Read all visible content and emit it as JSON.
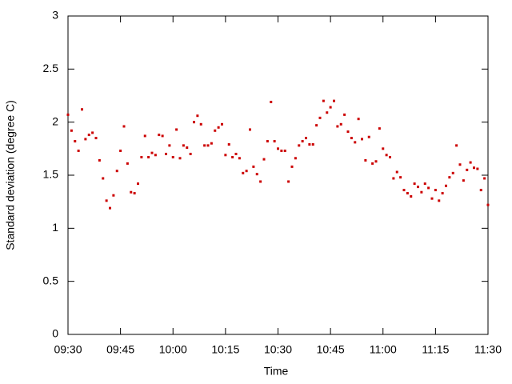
{
  "chart_data": {
    "type": "scatter",
    "xlabel": "Time",
    "ylabel": "Standard deviation (degree C)",
    "color": "#cc0000",
    "xlim": [
      "09:30",
      "11:30"
    ],
    "xticks": [
      "09:30",
      "09:45",
      "10:00",
      "10:15",
      "10:30",
      "10:45",
      "11:00",
      "11:15",
      "11:30"
    ],
    "ylim": [
      0,
      3
    ],
    "yticks": [
      0,
      0.5,
      1,
      1.5,
      2,
      2.5,
      3
    ],
    "x": [
      "09:30",
      "09:31",
      "09:32",
      "09:33",
      "09:34",
      "09:35",
      "09:36",
      "09:37",
      "09:38",
      "09:39",
      "09:40",
      "09:41",
      "09:42",
      "09:43",
      "09:44",
      "09:45",
      "09:46",
      "09:47",
      "09:48",
      "09:49",
      "09:50",
      "09:51",
      "09:52",
      "09:53",
      "09:54",
      "09:55",
      "09:56",
      "09:57",
      "09:58",
      "09:59",
      "10:00",
      "10:01",
      "10:02",
      "10:03",
      "10:04",
      "10:05",
      "10:06",
      "10:07",
      "10:08",
      "10:09",
      "10:10",
      "10:11",
      "10:12",
      "10:13",
      "10:14",
      "10:15",
      "10:16",
      "10:17",
      "10:18",
      "10:19",
      "10:20",
      "10:21",
      "10:22",
      "10:23",
      "10:24",
      "10:25",
      "10:26",
      "10:27",
      "10:28",
      "10:29",
      "10:30",
      "10:31",
      "10:32",
      "10:33",
      "10:34",
      "10:35",
      "10:36",
      "10:37",
      "10:38",
      "10:39",
      "10:40",
      "10:41",
      "10:42",
      "10:43",
      "10:44",
      "10:45",
      "10:46",
      "10:47",
      "10:48",
      "10:49",
      "10:50",
      "10:51",
      "10:52",
      "10:53",
      "10:54",
      "10:55",
      "10:56",
      "10:57",
      "10:58",
      "10:59",
      "11:00",
      "11:01",
      "11:02",
      "11:03",
      "11:04",
      "11:05",
      "11:06",
      "11:07",
      "11:08",
      "11:09",
      "11:10",
      "11:11",
      "11:12",
      "11:13",
      "11:14",
      "11:15",
      "11:16",
      "11:17",
      "11:18",
      "11:19",
      "11:20",
      "11:21",
      "11:22",
      "11:23",
      "11:24",
      "11:25",
      "11:26",
      "11:27",
      "11:28",
      "11:29",
      "11:30"
    ],
    "values": [
      2.07,
      1.92,
      1.82,
      1.73,
      2.12,
      1.84,
      1.88,
      1.9,
      1.85,
      1.64,
      1.47,
      1.26,
      1.19,
      1.31,
      1.54,
      1.73,
      1.96,
      1.61,
      1.34,
      1.33,
      1.42,
      1.67,
      1.87,
      1.67,
      1.71,
      1.69,
      1.88,
      1.87,
      1.7,
      1.78,
      1.67,
      1.93,
      1.66,
      1.78,
      1.76,
      1.7,
      2.0,
      2.06,
      1.98,
      1.78,
      1.78,
      1.8,
      1.92,
      1.95,
      1.98,
      1.69,
      1.79,
      1.67,
      1.7,
      1.66,
      1.52,
      1.54,
      1.93,
      1.58,
      1.51,
      1.44,
      1.65,
      1.82,
      2.19,
      1.82,
      1.75,
      1.73,
      1.73,
      1.44,
      1.58,
      1.66,
      1.78,
      1.82,
      1.85,
      1.79,
      1.79,
      1.97,
      2.04,
      2.2,
      2.09,
      2.14,
      2.2,
      1.96,
      1.98,
      2.07,
      1.91,
      1.85,
      1.81,
      2.03,
      1.84,
      1.64,
      1.86,
      1.61,
      1.63,
      1.94,
      1.75,
      1.69,
      1.67,
      1.47,
      1.53,
      1.48,
      1.36,
      1.33,
      1.3,
      1.42,
      1.39,
      1.34,
      1.42,
      1.38,
      1.28,
      1.36,
      1.26,
      1.33,
      1.4,
      1.48,
      1.52,
      1.78,
      1.6,
      1.45,
      1.55,
      1.62,
      1.57,
      1.56,
      1.36,
      1.47,
      1.22
    ]
  }
}
